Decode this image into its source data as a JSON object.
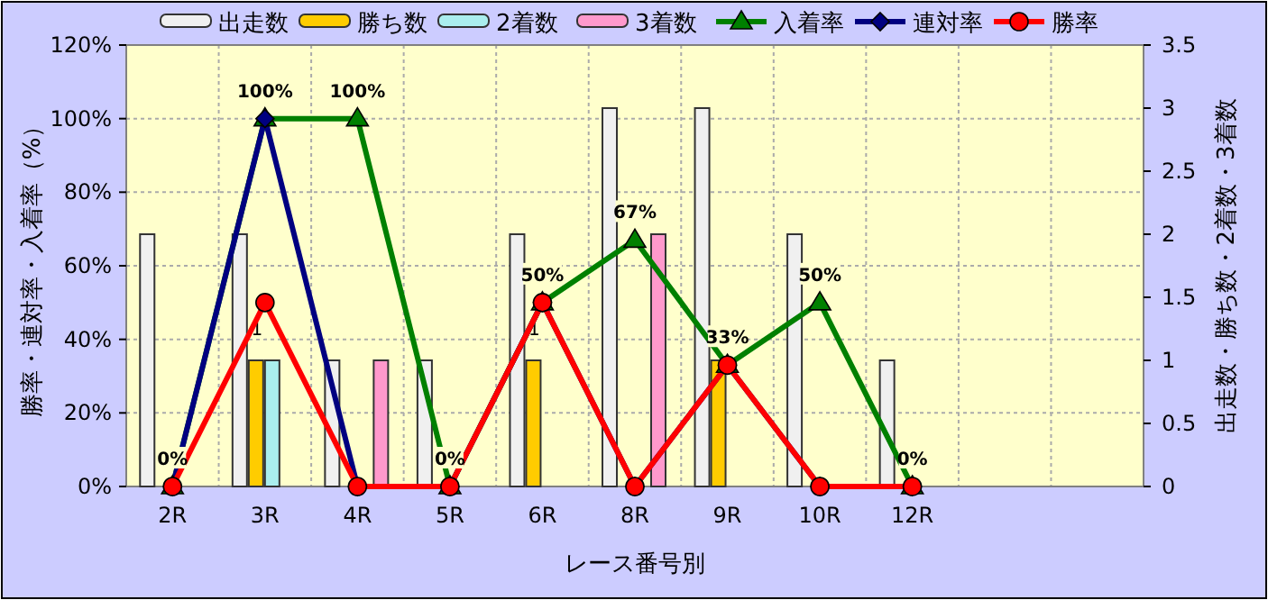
{
  "chart_data": {
    "type": "bar",
    "xlabel": "レース番号別",
    "ylabel": "勝率・連対率・入着率（%）",
    "y2label": "出走数・勝ち数・2着数・3着数",
    "categories": [
      "2R",
      "3R",
      "4R",
      "5R",
      "6R",
      "8R",
      "9R",
      "10R",
      "12R",
      null,
      null
    ],
    "series": [
      {
        "name": "出走数",
        "type": "bar",
        "axis": "y2",
        "color": "#f0f0f0",
        "values": [
          2,
          2,
          1,
          1,
          2,
          3,
          3,
          2,
          1,
          null,
          null
        ]
      },
      {
        "name": "勝ち数",
        "type": "bar",
        "axis": "y2",
        "color": "#ffcc00",
        "values": [
          0,
          1,
          0,
          0,
          1,
          0,
          1,
          0,
          0,
          null,
          null
        ],
        "value_labels": [
          null,
          "1",
          null,
          null,
          "1",
          null,
          null,
          null,
          null,
          null,
          null
        ]
      },
      {
        "name": "2着数",
        "type": "bar",
        "axis": "y2",
        "color": "#aaeeee",
        "values": [
          0,
          1,
          0,
          0,
          0,
          0,
          0,
          0,
          0,
          null,
          null
        ]
      },
      {
        "name": "3着数",
        "type": "bar",
        "axis": "y2",
        "color": "#ff99cc",
        "values": [
          0,
          0,
          1,
          0,
          0,
          2,
          0,
          0,
          0,
          null,
          null
        ]
      },
      {
        "name": "入着率",
        "type": "line",
        "color": "#008000",
        "marker": "triangle",
        "values": [
          0,
          100,
          100,
          0,
          50,
          67,
          33,
          50,
          0,
          null,
          null
        ],
        "value_labels": [
          "0%",
          "100%",
          "100%",
          "0%",
          "50%",
          "67%",
          "33%",
          "50%",
          "0%",
          null,
          null
        ]
      },
      {
        "name": "連対率",
        "type": "line",
        "color": "#000080",
        "marker": "diamond",
        "values": [
          0,
          100,
          0,
          0,
          50,
          0,
          33,
          0,
          0,
          null,
          null
        ]
      },
      {
        "name": "勝率",
        "type": "line",
        "color": "#ff0000",
        "marker": "circle",
        "values": [
          0,
          50,
          0,
          0,
          50,
          0,
          33,
          0,
          0,
          null,
          null
        ]
      }
    ],
    "ylim": [
      0,
      120
    ],
    "yticks": [
      {
        "value": 0,
        "label": "0%"
      },
      {
        "value": 20,
        "label": "20%"
      },
      {
        "value": 40,
        "label": "40%"
      },
      {
        "value": 60,
        "label": "60%"
      },
      {
        "value": 80,
        "label": "80%"
      },
      {
        "value": 100,
        "label": "100%"
      },
      {
        "value": 120,
        "label": "120%"
      }
    ],
    "y2lim": [
      0,
      3.5
    ],
    "y2ticks": [
      0,
      0.5,
      1,
      1.5,
      2,
      2.5,
      3,
      3.5
    ],
    "grid": true,
    "legend": "top"
  }
}
